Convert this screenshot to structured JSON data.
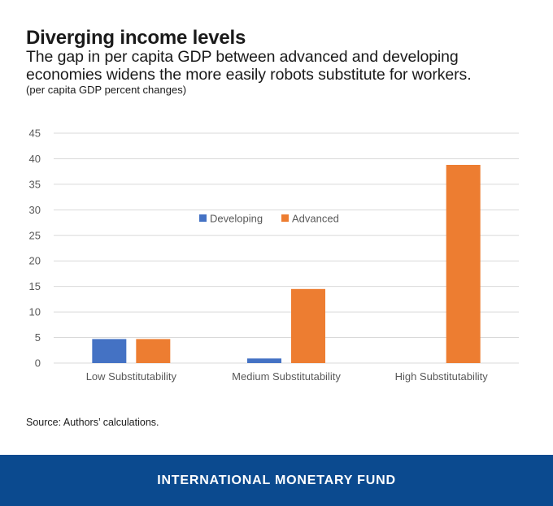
{
  "header": {
    "title": "Diverging income levels",
    "subtitle": "The gap in per capita GDP between advanced and developing economies widens the more easily robots substitute for workers.",
    "units": "(per capita GDP percent changes)"
  },
  "source": "Source: Authors’ calculations.",
  "footer": {
    "brand": "INTERNATIONAL MONETARY FUND"
  },
  "colors": {
    "developing": "#4472c4",
    "advanced": "#ed7d31",
    "footer_bg": "#0b4a8f",
    "grid": "#d9d9d9"
  },
  "chart_data": {
    "type": "bar",
    "categories": [
      "Low Substitutability",
      "Medium Substitutability",
      "High Substitutability"
    ],
    "series": [
      {
        "name": "Developing",
        "values": [
          4.7,
          0.9,
          0.0
        ],
        "color": "#4472c4"
      },
      {
        "name": "Advanced",
        "values": [
          4.7,
          14.5,
          38.8
        ],
        "color": "#ed7d31"
      }
    ],
    "yticks": [
      0,
      5,
      10,
      15,
      20,
      25,
      30,
      35,
      40,
      45
    ],
    "ylim": [
      0,
      45
    ],
    "grid": true,
    "legend_position": "inside-top-center"
  }
}
